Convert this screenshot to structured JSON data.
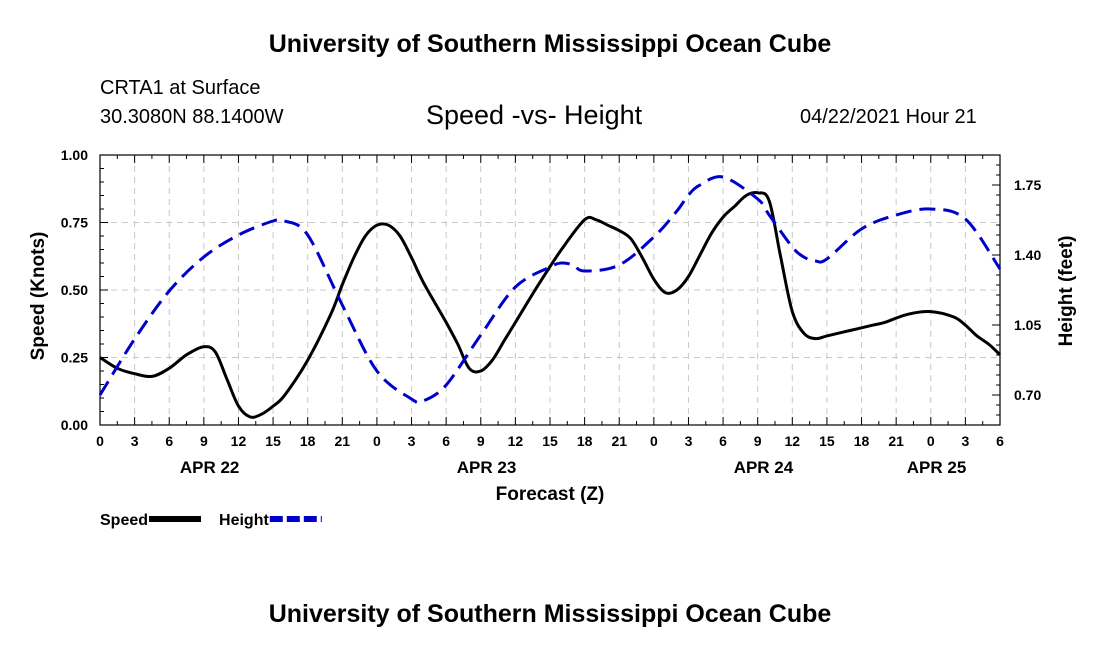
{
  "header": {
    "title": "University of Southern Mississippi Ocean Cube",
    "station": "CRTA1 at Surface",
    "coordinates": "30.3080N  88.1400W",
    "datetime": "04/22/2021 Hour 21"
  },
  "footer": {
    "title": "University of Southern Mississippi Ocean Cube"
  },
  "chart_data": {
    "type": "line",
    "title": "Speed -vs- Height",
    "xlabel": "Forecast (Z)",
    "ylabel": "Speed (Knots)",
    "y2label": "Height (feet)",
    "x_unit": "hours from APR 22 00Z",
    "xlim": [
      0,
      78
    ],
    "ylim": [
      0,
      1.0
    ],
    "y2lim": [
      0.55,
      1.9
    ],
    "grid": true,
    "legend_position": "bottom-left",
    "x_ticks": [
      0,
      3,
      6,
      9,
      12,
      15,
      18,
      21,
      24,
      27,
      30,
      33,
      36,
      39,
      42,
      45,
      48,
      51,
      54,
      57,
      60,
      63,
      66,
      69,
      72,
      75,
      78
    ],
    "x_tick_labels": [
      "0",
      "3",
      "6",
      "9",
      "12",
      "15",
      "18",
      "21",
      "0",
      "3",
      "6",
      "9",
      "12",
      "15",
      "18",
      "21",
      "0",
      "3",
      "6",
      "9",
      "12",
      "15",
      "18",
      "21",
      "0",
      "3",
      "6"
    ],
    "date_labels": [
      {
        "label": "APR 22",
        "hour": 9.5
      },
      {
        "label": "APR 23",
        "hour": 33.5
      },
      {
        "label": "APR 24",
        "hour": 57.5
      },
      {
        "label": "APR 25",
        "hour": 72.5
      }
    ],
    "y_ticks": [
      0.0,
      0.25,
      0.5,
      0.75,
      1.0
    ],
    "y_tick_labels": [
      "0.00",
      "0.25",
      "0.50",
      "0.75",
      "1.00"
    ],
    "y2_ticks": [
      0.7,
      1.05,
      1.4,
      1.75
    ],
    "y2_tick_labels": [
      "0.70",
      "1.05",
      "1.40",
      "1.75"
    ],
    "series": [
      {
        "name": "Speed",
        "axis": "left",
        "color": "#000000",
        "style": "solid",
        "x": [
          0,
          1.5,
          3,
          4.5,
          6,
          7.5,
          9,
          10,
          11,
          12,
          13,
          14,
          15,
          16,
          18,
          20,
          21,
          22,
          23,
          24,
          25,
          26,
          27,
          28,
          30,
          31,
          32,
          33,
          34,
          35,
          36,
          38,
          40,
          42,
          43,
          44,
          45,
          46,
          47,
          48,
          49,
          50,
          51,
          52,
          53,
          54,
          55,
          56,
          57,
          58,
          59,
          60,
          61,
          62,
          63,
          64,
          65,
          66,
          67,
          68,
          70,
          72,
          74,
          75,
          76,
          77,
          78
        ],
        "values": [
          0.25,
          0.21,
          0.19,
          0.18,
          0.21,
          0.26,
          0.29,
          0.27,
          0.17,
          0.07,
          0.03,
          0.04,
          0.07,
          0.11,
          0.24,
          0.41,
          0.52,
          0.62,
          0.7,
          0.74,
          0.74,
          0.7,
          0.62,
          0.53,
          0.38,
          0.3,
          0.21,
          0.2,
          0.24,
          0.31,
          0.38,
          0.52,
          0.65,
          0.76,
          0.76,
          0.74,
          0.72,
          0.69,
          0.62,
          0.54,
          0.49,
          0.5,
          0.55,
          0.63,
          0.71,
          0.77,
          0.81,
          0.85,
          0.86,
          0.83,
          0.62,
          0.42,
          0.34,
          0.32,
          0.33,
          0.34,
          0.35,
          0.36,
          0.37,
          0.38,
          0.41,
          0.42,
          0.4,
          0.37,
          0.33,
          0.3,
          0.26
        ]
      },
      {
        "name": "Height",
        "axis": "right",
        "color": "#0000cc",
        "style": "dashed",
        "x": [
          0,
          3,
          6,
          9,
          12,
          15,
          16,
          18,
          21,
          24,
          27,
          28,
          30,
          33,
          36,
          39,
          40,
          41,
          42,
          45,
          48,
          50,
          51,
          52,
          54,
          57,
          58,
          60,
          61,
          62,
          63,
          66,
          69,
          72,
          75,
          78
        ],
        "values": [
          0.7,
          0.98,
          1.22,
          1.39,
          1.5,
          1.57,
          1.57,
          1.5,
          1.15,
          0.82,
          0.68,
          0.67,
          0.75,
          1.0,
          1.24,
          1.34,
          1.36,
          1.35,
          1.32,
          1.35,
          1.49,
          1.62,
          1.7,
          1.75,
          1.79,
          1.68,
          1.6,
          1.44,
          1.39,
          1.37,
          1.38,
          1.53,
          1.6,
          1.63,
          1.58,
          1.33
        ]
      }
    ]
  }
}
